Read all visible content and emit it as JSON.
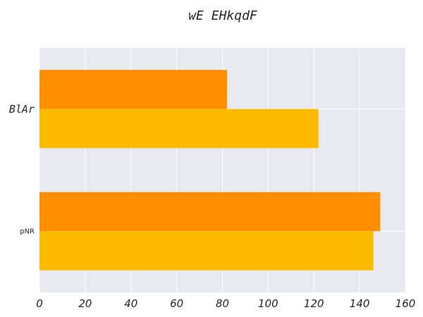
{
  "chart_data": {
    "type": "bar",
    "orientation": "horizontal",
    "title": "wE EHkqdF",
    "xlabel": "",
    "ylabel": "",
    "categories": [
      "BlAr",
      "pNR"
    ],
    "series": [
      {
        "color": "#ff8f00",
        "values": [
          82,
          149
        ]
      },
      {
        "color": "#fdbb00",
        "values": [
          122,
          146
        ]
      }
    ],
    "xlim": [
      0,
      160
    ],
    "xticks": [
      0,
      20,
      40,
      60,
      80,
      100,
      120,
      140,
      160
    ],
    "grid": true,
    "legend": "none",
    "background": "#e9e9f1"
  }
}
